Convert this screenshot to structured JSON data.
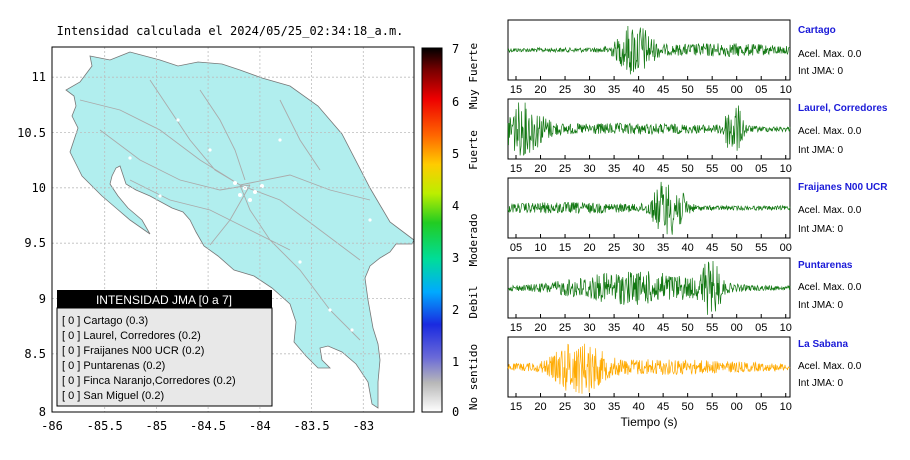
{
  "title": "Intensidad calculada el 2024/05/25_02:34:18_a.m.",
  "chart_data": [
    {
      "type": "map",
      "x_ticks": [
        "-86",
        "-85.5",
        "-85",
        "-84.5",
        "-84",
        "-83.5",
        "-83"
      ],
      "y_ticks": [
        "11",
        "10.5",
        "10",
        "9.5",
        "9",
        "8.5",
        "8"
      ],
      "xlim": [
        -86,
        -82.5
      ],
      "ylim": [
        8,
        11.3
      ],
      "grid": true,
      "legend": {
        "title": "INTENSIDAD JMA [0 a 7]",
        "entries": [
          "[ 0 ]  Cartago (0.3)",
          "[ 0 ]  Laurel, Corredores (0.2)",
          "[ 0 ]  Fraijanes N00 UCR (0.2)",
          "[ 0 ]  Puntarenas (0.2)",
          "[ 0 ]  Finca Naranjo,Corredores (0.2)",
          "[ 0 ]  San Miguel (0.2)"
        ]
      }
    },
    {
      "type": "colorbar",
      "ticks": [
        "7",
        "6",
        "5",
        "4",
        "3",
        "2",
        "1",
        "0"
      ],
      "range": [
        0,
        7
      ],
      "class_labels": [
        "Muy Fuerte",
        "Fuerte",
        "Moderado",
        "Debil",
        "No sentido"
      ]
    },
    {
      "type": "waveforms",
      "xlabel": "Tiempo (s)",
      "traces": [
        {
          "name": "Cartago",
          "accel": "Acel. Max. 0.0",
          "int": "Int JMA: 0",
          "color": "#117711",
          "ticks": [
            "15",
            "20",
            "25",
            "30",
            "35",
            "40",
            "45",
            "50",
            "55",
            "00",
            "05",
            "10"
          ]
        },
        {
          "name": "Laurel, Corredores",
          "accel": "Acel. Max. 0.0",
          "int": "Int JMA: 0",
          "color": "#117711",
          "ticks": [
            "15",
            "20",
            "25",
            "30",
            "35",
            "40",
            "45",
            "50",
            "55",
            "00",
            "05",
            "10"
          ]
        },
        {
          "name": "Fraijanes N00 UCR",
          "accel": "Acel. Max. 0.0",
          "int": "Int JMA: 0",
          "color": "#117711",
          "ticks": [
            "05",
            "10",
            "15",
            "20",
            "25",
            "30",
            "35",
            "40",
            "45",
            "50",
            "55",
            "00"
          ]
        },
        {
          "name": "Puntarenas",
          "accel": "Acel. Max. 0.0",
          "int": "Int JMA: 0",
          "color": "#117711",
          "ticks": [
            "15",
            "20",
            "25",
            "30",
            "35",
            "40",
            "45",
            "50",
            "55",
            "00",
            "05",
            "10"
          ]
        },
        {
          "name": "La Sabana",
          "accel": "Acel. Max. 0.0",
          "int": "Int JMA: 0",
          "color": "#ffaa00",
          "ticks": [
            "15",
            "20",
            "25",
            "30",
            "35",
            "40",
            "45",
            "50",
            "55",
            "00",
            "05",
            "10"
          ]
        }
      ]
    }
  ]
}
